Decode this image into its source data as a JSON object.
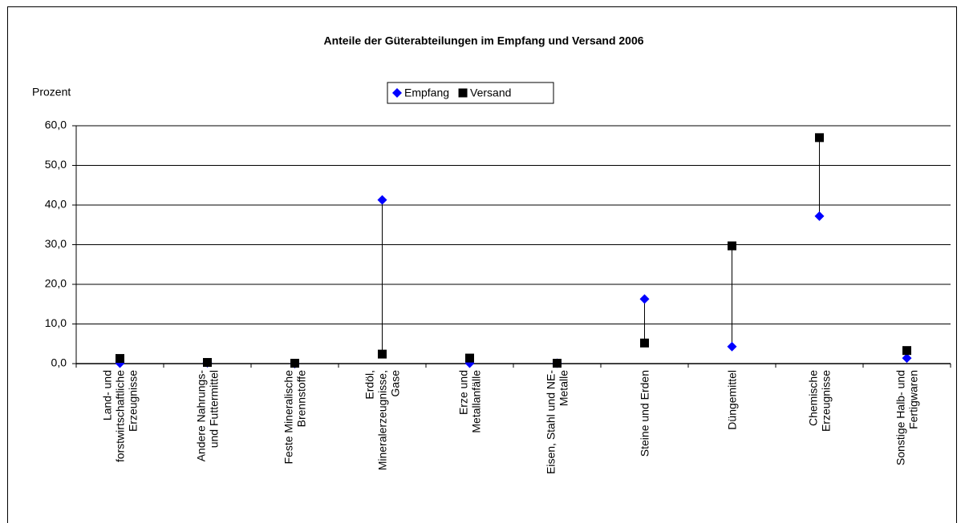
{
  "chart_data": {
    "type": "scatter",
    "title": "Anteile der Güterabteilungen im Empfang und Versand 2006",
    "y_axis_label": "Prozent",
    "categories": [
      "Land- und\nforstwirtschaftliche\nErzeugnisse",
      "Andere Nahrungs-\nund Futtermittel",
      "Feste Mineralische\nBrennstoffe",
      "Erdöl,\nMineralerzeugnisse,\nGase",
      "Erze und\nMetallanfälle",
      "Eisen, Stahl und NE-\nMetalle",
      "Steine und Erden",
      "Düngemittel",
      "Chemische\nErzeugnisse",
      "Sonstige Halb- und\nFertigwaren"
    ],
    "series": [
      {
        "name": "Empfang",
        "color": "#0000ff",
        "marker": "diamond",
        "values": [
          0.1,
          0.2,
          0.0,
          41.3,
          0.1,
          0.1,
          16.3,
          4.3,
          37.2,
          1.4
        ]
      },
      {
        "name": "Versand",
        "color": "#000000",
        "marker": "square",
        "values": [
          1.3,
          0.3,
          0.1,
          2.4,
          1.4,
          0.1,
          5.2,
          29.7,
          57.0,
          3.3
        ]
      }
    ],
    "ylim": [
      0,
      60
    ],
    "yticks": [
      {
        "value": 0,
        "label": "0,0"
      },
      {
        "value": 10,
        "label": "10,0"
      },
      {
        "value": 20,
        "label": "20,0"
      },
      {
        "value": 30,
        "label": "30,0"
      },
      {
        "value": 40,
        "label": "40,0"
      },
      {
        "value": 50,
        "label": "50,0"
      },
      {
        "value": 60,
        "label": "60,0"
      }
    ],
    "grid": true,
    "legend": "top"
  }
}
